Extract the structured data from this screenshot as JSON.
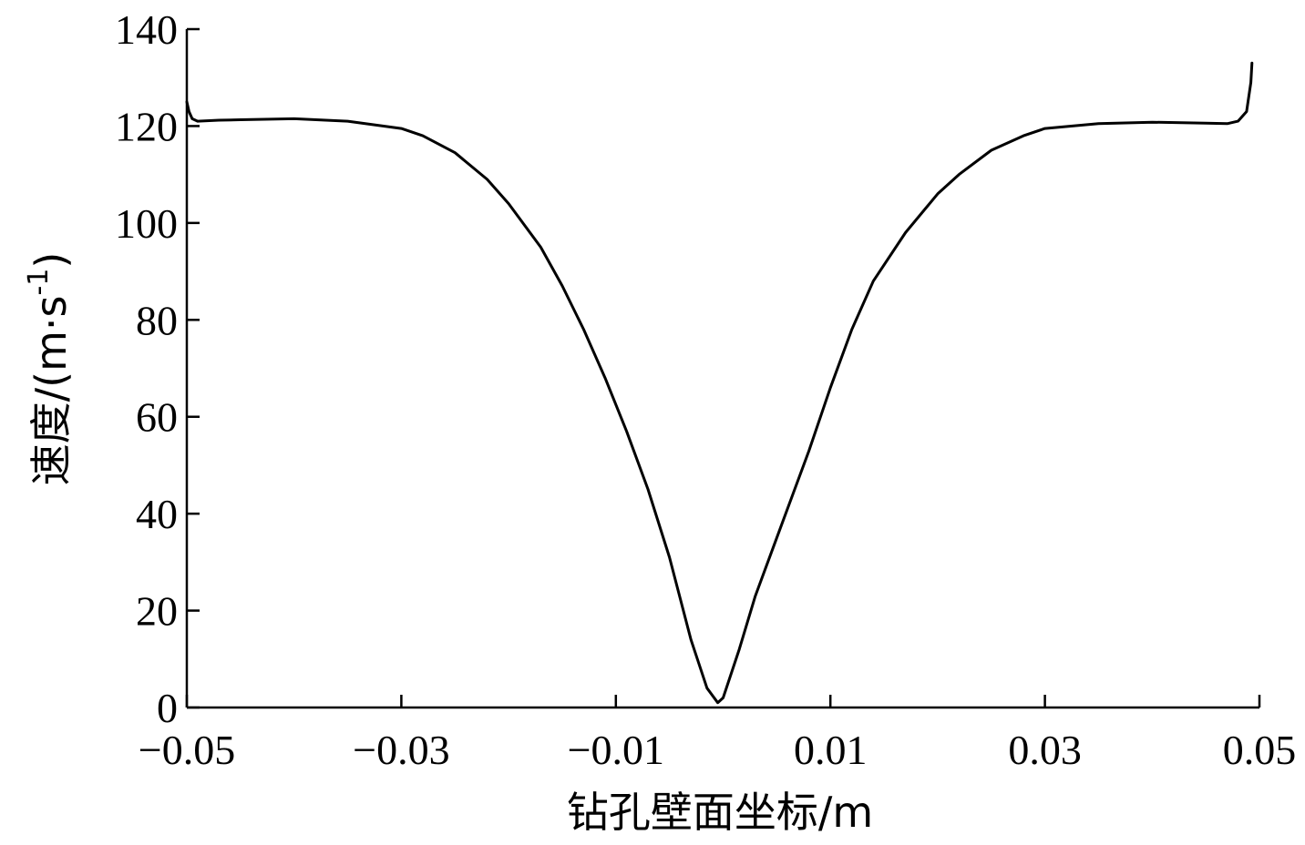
{
  "chart_data": {
    "type": "line",
    "xlabel": "钻孔壁面坐标/m",
    "ylabel_text": "速度/(m·s",
    "ylabel_sup": "-1",
    "ylabel_close": ")",
    "xlim": [
      -0.05,
      0.05
    ],
    "ylim": [
      0,
      140
    ],
    "x_ticks": [
      -0.05,
      -0.03,
      -0.01,
      0.01,
      0.03,
      0.05
    ],
    "x_tick_labels": [
      "−0.05",
      "−0.03",
      "−0.01",
      "0.01",
      "0.03",
      "0.05"
    ],
    "y_ticks": [
      0,
      20,
      40,
      60,
      80,
      100,
      120,
      140
    ],
    "y_tick_labels": [
      "0",
      "20",
      "40",
      "60",
      "80",
      "100",
      "120",
      "140"
    ],
    "grid": false,
    "series": [
      {
        "color": "#000000",
        "points": [
          [
            -0.05,
            125
          ],
          [
            -0.0498,
            123
          ],
          [
            -0.0495,
            121.5
          ],
          [
            -0.049,
            121
          ],
          [
            -0.047,
            121.2
          ],
          [
            -0.045,
            121.3
          ],
          [
            -0.04,
            121.5
          ],
          [
            -0.035,
            121
          ],
          [
            -0.03,
            119.5
          ],
          [
            -0.028,
            118
          ],
          [
            -0.025,
            114.5
          ],
          [
            -0.022,
            109
          ],
          [
            -0.02,
            104
          ],
          [
            -0.017,
            95
          ],
          [
            -0.015,
            87
          ],
          [
            -0.013,
            78
          ],
          [
            -0.011,
            68
          ],
          [
            -0.009,
            57
          ],
          [
            -0.007,
            45
          ],
          [
            -0.005,
            31
          ],
          [
            -0.003,
            14
          ],
          [
            -0.0015,
            4
          ],
          [
            -0.0005,
            1
          ],
          [
            0.0,
            2
          ],
          [
            0.0015,
            12
          ],
          [
            0.003,
            23
          ],
          [
            0.005,
            35
          ],
          [
            0.0065,
            44
          ],
          [
            0.008,
            53
          ],
          [
            0.01,
            66
          ],
          [
            0.012,
            78
          ],
          [
            0.014,
            88
          ],
          [
            0.017,
            98
          ],
          [
            0.02,
            106
          ],
          [
            0.022,
            110
          ],
          [
            0.025,
            115
          ],
          [
            0.028,
            118
          ],
          [
            0.03,
            119.5
          ],
          [
            0.035,
            120.5
          ],
          [
            0.04,
            120.8
          ],
          [
            0.045,
            120.6
          ],
          [
            0.047,
            120.5
          ],
          [
            0.048,
            121
          ],
          [
            0.0488,
            123
          ],
          [
            0.0492,
            129
          ],
          [
            0.0493,
            133
          ]
        ]
      }
    ]
  }
}
